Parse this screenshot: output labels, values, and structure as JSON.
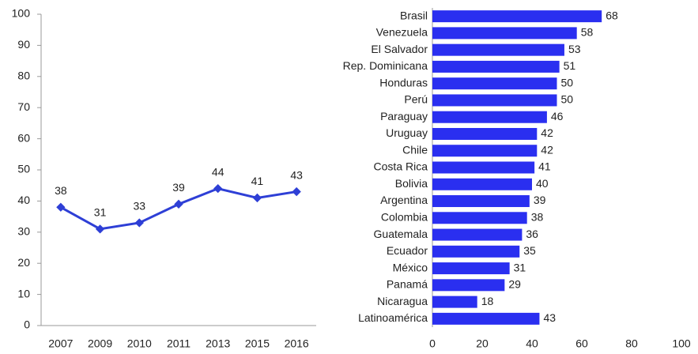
{
  "chart_data": [
    {
      "type": "line",
      "categories": [
        "2007",
        "2009",
        "2010",
        "2011",
        "2013",
        "2015",
        "2016"
      ],
      "values": [
        38,
        31,
        33,
        39,
        44,
        41,
        43
      ],
      "color": "#2e3fd6",
      "ylim": [
        0,
        100
      ],
      "yticks": [
        0,
        10,
        20,
        30,
        40,
        50,
        60,
        70,
        80,
        90,
        100
      ]
    },
    {
      "type": "hbar",
      "categories": [
        "Brasil",
        "Venezuela",
        "El Salvador",
        "Rep. Dominicana",
        "Honduras",
        "Perú",
        "Paraguay",
        "Uruguay",
        "Chile",
        "Costa Rica",
        "Bolivia",
        "Argentina",
        "Colombia",
        "Guatemala",
        "Ecuador",
        "México",
        "Panamá",
        "Nicaragua",
        "Latinoamérica"
      ],
      "values": [
        68,
        58,
        53,
        51,
        50,
        50,
        46,
        42,
        42,
        41,
        40,
        39,
        38,
        36,
        35,
        31,
        29,
        18,
        43
      ],
      "color": "#2a2ff0",
      "xlim": [
        0,
        100
      ],
      "xticks": [
        0,
        20,
        40,
        60,
        80,
        100
      ]
    }
  ]
}
